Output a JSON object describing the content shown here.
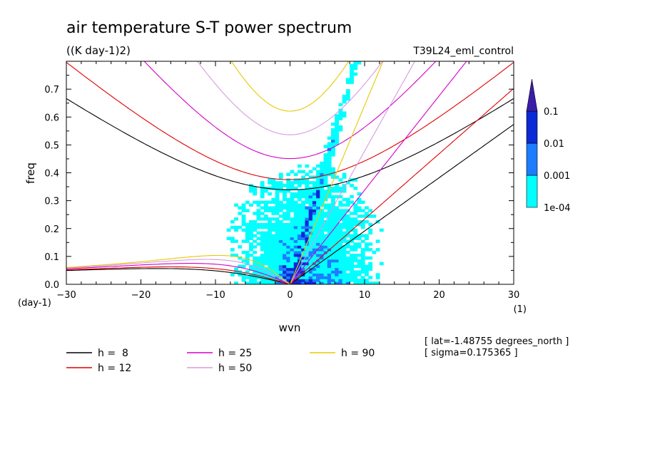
{
  "chart_data": {
    "type": "heatmap",
    "title": "air temperature S-T power spectrum",
    "subtitle": "((K day-1)2)",
    "run_label": "T39L24_eml_control",
    "xlabel": "wvn",
    "ylabel": "freq",
    "x_unit": "(1)",
    "y_unit": "(day-1)",
    "xlim": [
      -30,
      30
    ],
    "ylim": [
      0,
      0.8
    ],
    "x_ticks": [
      -30,
      -20,
      -10,
      0,
      10,
      20,
      30
    ],
    "y_ticks": [
      0.0,
      0.1,
      0.2,
      0.3,
      0.4,
      0.5,
      0.6,
      0.7
    ],
    "colorbar": {
      "levels": [
        "1e-04",
        "0.001",
        "0.01",
        "0.1"
      ],
      "colors": [
        "#00ffff",
        "#1e7cff",
        "#0a2ad6",
        "#3b1ea8"
      ]
    },
    "dispersion_curves": [
      {
        "name": "h =  8",
        "h": 8,
        "color": "#000000"
      },
      {
        "name": "h = 12",
        "h": 12,
        "color": "#e00000"
      },
      {
        "name": "h = 25",
        "h": 25,
        "color": "#d400c8"
      },
      {
        "name": "h = 50",
        "h": 50,
        "color": "#d89ae0"
      },
      {
        "name": "h = 90",
        "h": 90,
        "color": "#e8c800"
      }
    ],
    "info": {
      "lat": "[ lat=-1.48755 degrees_north ]",
      "sigma": "[ sigma=0.175365 ]"
    }
  }
}
